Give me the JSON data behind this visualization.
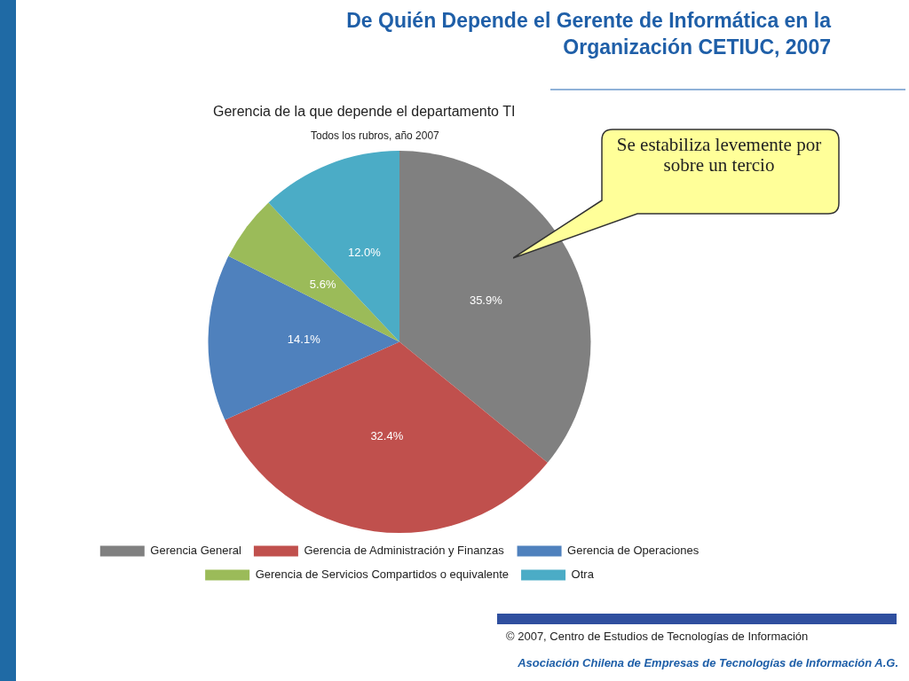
{
  "chart_data": {
    "type": "pie",
    "title": "Gerencia de la que depende el departamento TI",
    "subtitle": "Todos los rubros, año 2007",
    "categories": [
      "Gerencia General",
      "Gerencia de Administración y Finanzas",
      "Gerencia de Operaciones",
      "Gerencia de Servicios Compartidos o equivalente",
      "Otra"
    ],
    "values": [
      35.9,
      32.4,
      14.1,
      5.6,
      12.0
    ],
    "colors": [
      "#808080",
      "#c0504d",
      "#4f81bd",
      "#9bbb59",
      "#4bacc6"
    ],
    "value_labels": [
      "35.9%",
      "32.4%",
      "14.1%",
      "5.6%",
      "12.0%"
    ],
    "legend": "bottom",
    "annotations": [
      "De Quién Depende el Gerente de Informática en la Organización CETIUC, 2007",
      "Se estabiliza levemente por sobre un tercio",
      "© 2007, Centro de Estudios de Tecnologías de Información",
      "Asociación Chilena de Empresas de Tecnologías de Información A.G."
    ]
  }
}
